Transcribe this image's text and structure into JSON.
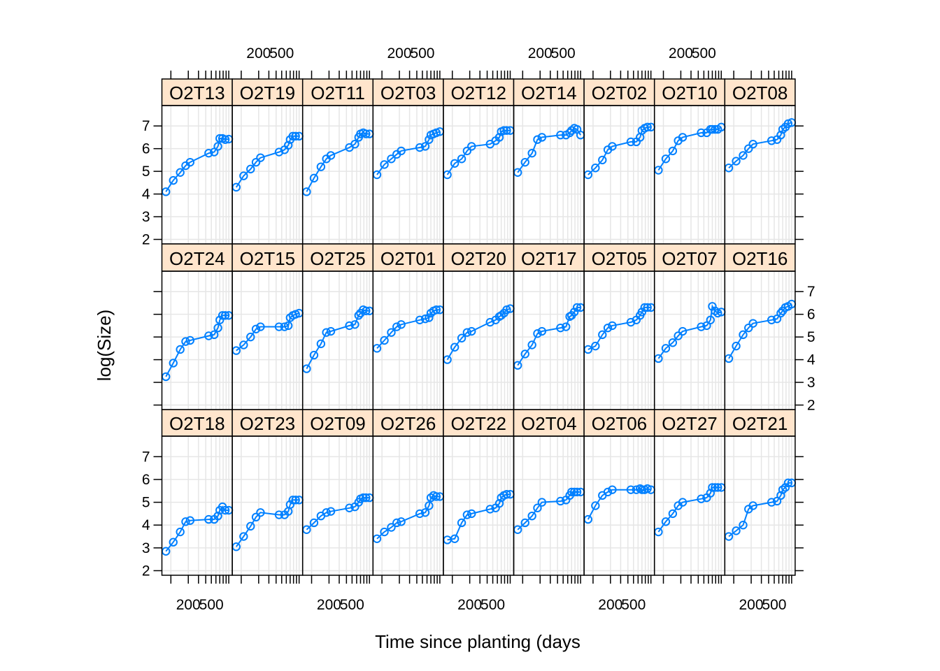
{
  "chart_data": {
    "type": "line",
    "subtype": "lattice-xyplot",
    "xlabel": "Time since planting (days",
    "ylabel": "log(Size)",
    "x_scale": "log",
    "xlim": [
      70,
      1150
    ],
    "ylim": [
      1.8,
      7.9
    ],
    "x_tick_values": [
      100,
      200,
      300,
      400,
      500,
      600,
      700,
      800,
      900,
      1000
    ],
    "x_tick_labels": [
      "200",
      "500"
    ],
    "x_tick_label_values": [
      200,
      500
    ],
    "y_tick_labels": [
      "2",
      "3",
      "4",
      "5",
      "6",
      "7"
    ],
    "y_tick_values": [
      2,
      3,
      4,
      5,
      6,
      7
    ],
    "grid": true,
    "colors": {
      "series": "#0080ff",
      "strip_background": "#ffe5cc",
      "grid": "#e6e6e6"
    },
    "times": [
      82,
      110,
      145,
      180,
      215,
      450,
      560,
      650,
      700,
      780,
      870,
      1000
    ],
    "panels": [
      {
        "name": "O2T13",
        "y": [
          4.1,
          4.6,
          4.95,
          5.25,
          5.4,
          5.8,
          5.85,
          6.1,
          6.45,
          6.45,
          6.4,
          6.42
        ]
      },
      {
        "name": "O2T19",
        "y": [
          4.3,
          4.8,
          5.1,
          5.4,
          5.6,
          5.85,
          5.95,
          6.15,
          6.4,
          6.55,
          6.55,
          6.55
        ]
      },
      {
        "name": "O2T11",
        "y": [
          4.1,
          4.7,
          5.2,
          5.55,
          5.7,
          6.05,
          6.2,
          6.5,
          6.65,
          6.7,
          6.65,
          6.65
        ]
      },
      {
        "name": "O2T03",
        "y": [
          4.85,
          5.3,
          5.55,
          5.75,
          5.9,
          6.05,
          6.1,
          6.4,
          6.6,
          6.65,
          6.7,
          6.75
        ]
      },
      {
        "name": "O2T12",
        "y": [
          4.85,
          5.35,
          5.55,
          5.9,
          6.1,
          6.2,
          6.35,
          6.5,
          6.75,
          6.8,
          6.8,
          6.8
        ]
      },
      {
        "name": "O2T14",
        "y": [
          4.95,
          5.4,
          5.8,
          6.4,
          6.5,
          6.6,
          6.6,
          6.7,
          6.8,
          6.9,
          6.85,
          6.6
        ]
      },
      {
        "name": "O2T02",
        "y": [
          4.85,
          5.15,
          5.5,
          5.95,
          6.1,
          6.3,
          6.3,
          6.5,
          6.8,
          6.9,
          6.95,
          6.95
        ]
      },
      {
        "name": "O2T10",
        "y": [
          5.05,
          5.55,
          5.9,
          6.35,
          6.5,
          6.7,
          6.7,
          6.85,
          6.85,
          6.85,
          6.85,
          6.95
        ]
      },
      {
        "name": "O2T08",
        "y": [
          5.15,
          5.45,
          5.7,
          6.0,
          6.2,
          6.35,
          6.4,
          6.6,
          6.85,
          6.95,
          7.1,
          7.15
        ]
      },
      {
        "name": "O2T24",
        "y": [
          3.25,
          3.85,
          4.45,
          4.8,
          4.85,
          5.05,
          5.1,
          5.4,
          5.75,
          5.95,
          5.95,
          5.95
        ]
      },
      {
        "name": "O2T15",
        "y": [
          4.4,
          4.65,
          5.0,
          5.35,
          5.45,
          5.45,
          5.45,
          5.5,
          5.85,
          5.95,
          6.0,
          6.05
        ]
      },
      {
        "name": "O2T25",
        "y": [
          3.6,
          4.2,
          4.7,
          5.2,
          5.25,
          5.5,
          5.55,
          5.95,
          6.05,
          6.2,
          6.15,
          6.15
        ]
      },
      {
        "name": "O2T01",
        "y": [
          4.5,
          4.85,
          5.2,
          5.45,
          5.55,
          5.75,
          5.8,
          5.85,
          6.05,
          6.15,
          6.2,
          6.2
        ]
      },
      {
        "name": "O2T20",
        "y": [
          4.0,
          4.55,
          4.95,
          5.2,
          5.25,
          5.65,
          5.75,
          5.9,
          5.95,
          6.05,
          6.2,
          6.25
        ]
      },
      {
        "name": "O2T17",
        "y": [
          3.75,
          4.25,
          4.65,
          5.15,
          5.25,
          5.4,
          5.45,
          5.9,
          5.95,
          6.1,
          6.3,
          6.3
        ]
      },
      {
        "name": "O2T05",
        "y": [
          4.45,
          4.6,
          5.1,
          5.4,
          5.5,
          5.65,
          5.75,
          5.95,
          6.1,
          6.3,
          6.3,
          6.3
        ]
      },
      {
        "name": "O2T07",
        "y": [
          4.05,
          4.5,
          4.75,
          5.05,
          5.25,
          5.45,
          5.5,
          5.75,
          6.35,
          6.15,
          6.05,
          6.1
        ]
      },
      {
        "name": "O2T16",
        "y": [
          4.05,
          4.6,
          5.1,
          5.4,
          5.6,
          5.75,
          5.8,
          6.05,
          6.15,
          6.3,
          6.35,
          6.45
        ]
      },
      {
        "name": "O2T18",
        "y": [
          2.85,
          3.25,
          3.7,
          4.15,
          4.2,
          4.25,
          4.25,
          4.4,
          4.65,
          4.8,
          4.65,
          4.65
        ]
      },
      {
        "name": "O2T23",
        "y": [
          3.05,
          3.5,
          3.95,
          4.35,
          4.55,
          4.45,
          4.45,
          4.6,
          4.9,
          5.1,
          5.1,
          5.1
        ]
      },
      {
        "name": "O2T09",
        "y": [
          3.8,
          4.1,
          4.4,
          4.55,
          4.6,
          4.75,
          4.8,
          5.0,
          5.15,
          5.2,
          5.2,
          5.2
        ]
      },
      {
        "name": "O2T26",
        "y": [
          3.4,
          3.7,
          3.9,
          4.1,
          4.15,
          4.5,
          4.55,
          4.85,
          5.2,
          5.3,
          5.25,
          5.25
        ]
      },
      {
        "name": "O2T22",
        "y": [
          3.35,
          3.4,
          4.1,
          4.45,
          4.5,
          4.7,
          4.75,
          4.95,
          5.2,
          5.3,
          5.35,
          5.35
        ]
      },
      {
        "name": "O2T04",
        "y": [
          3.8,
          4.1,
          4.4,
          4.75,
          5.0,
          5.05,
          5.1,
          5.3,
          5.45,
          5.45,
          5.45,
          5.45
        ]
      },
      {
        "name": "O2T06",
        "y": [
          4.25,
          4.85,
          5.3,
          5.45,
          5.55,
          5.55,
          5.55,
          5.6,
          5.55,
          5.55,
          5.6,
          5.55
        ]
      },
      {
        "name": "O2T27",
        "y": [
          3.7,
          4.15,
          4.5,
          4.85,
          5.0,
          5.15,
          5.2,
          5.4,
          5.65,
          5.65,
          5.65,
          5.65
        ]
      },
      {
        "name": "O2T21",
        "y": [
          3.5,
          3.75,
          4.0,
          4.7,
          4.85,
          5.0,
          5.05,
          5.3,
          5.55,
          5.65,
          5.85,
          5.85
        ]
      }
    ]
  }
}
